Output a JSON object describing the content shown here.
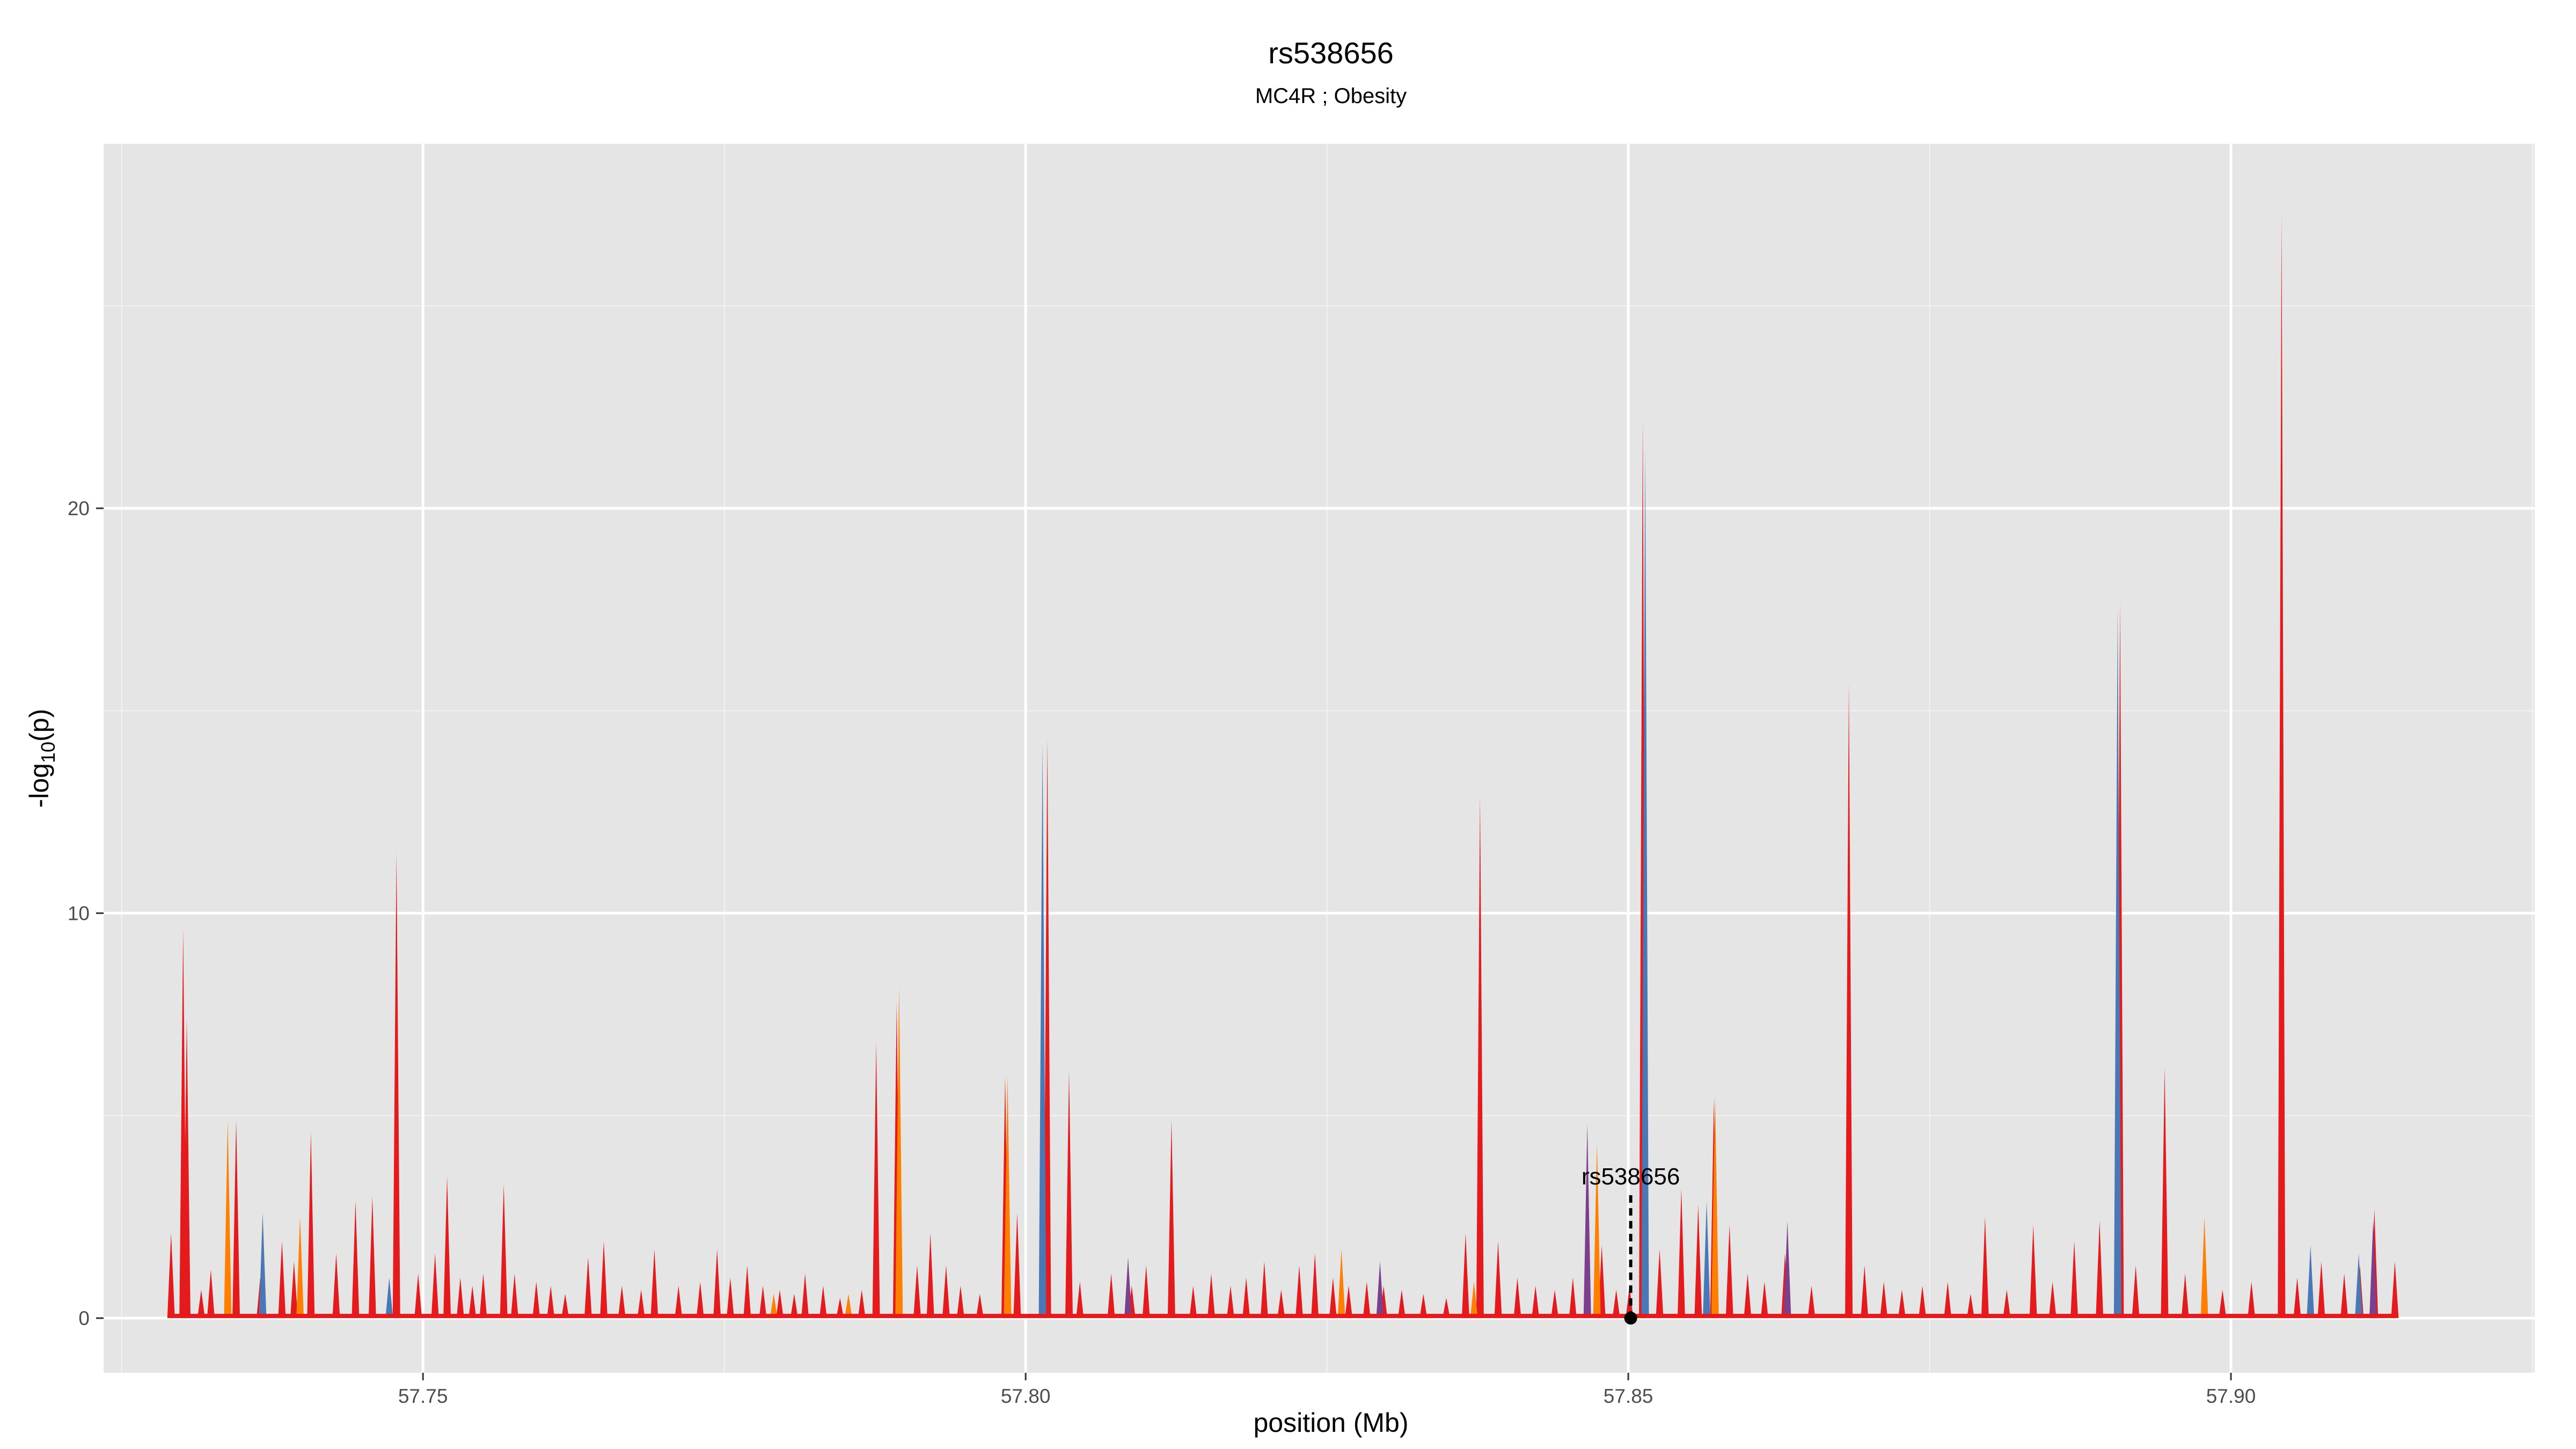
{
  "chart_data": {
    "type": "area",
    "title": "rs538656",
    "subtitle": "MC4R ; Obesity",
    "xlabel": "position (Mb)",
    "ylabel_main": "-log",
    "ylabel_sub": "10",
    "ylabel_tail": "(p)",
    "xlim": [
      57.7235,
      57.9252
    ],
    "ylim": [
      -1.35,
      29.0
    ],
    "x_ticks": [
      {
        "value": 57.75,
        "label": "57.75"
      },
      {
        "value": 57.8,
        "label": "57.80"
      },
      {
        "value": 57.85,
        "label": "57.85"
      },
      {
        "value": 57.9,
        "label": "57.90"
      }
    ],
    "y_ticks": [
      {
        "value": 0,
        "label": "0"
      },
      {
        "value": 10,
        "label": "10"
      },
      {
        "value": 20,
        "label": "20"
      }
    ],
    "grid": true,
    "legend": "none",
    "colors": {
      "panel": "#e5e5e5",
      "grid_major": "#ffffff",
      "grid_minor": "#f2f2f2",
      "red": "#e41a1c",
      "blue": "#4a78b5",
      "orange": "#ff7f00",
      "purple": "#7b3f8c"
    },
    "series": [
      {
        "color": "red",
        "peaks": [
          [
            57.7291,
            2.1
          ],
          [
            57.7301,
            9.6
          ],
          [
            57.7304,
            7.4
          ],
          [
            57.7316,
            0.7
          ],
          [
            57.7324,
            1.2
          ],
          [
            57.7345,
            4.9
          ],
          [
            57.7365,
            1.0
          ],
          [
            57.7383,
            1.9
          ],
          [
            57.7393,
            1.4
          ],
          [
            57.7407,
            4.6
          ],
          [
            57.7428,
            1.6
          ],
          [
            57.7444,
            2.9
          ],
          [
            57.7458,
            3.0
          ],
          [
            57.7478,
            11.5
          ],
          [
            57.7496,
            1.1
          ],
          [
            57.751,
            1.6
          ],
          [
            57.752,
            3.5
          ],
          [
            57.7531,
            1.0
          ],
          [
            57.7541,
            0.8
          ],
          [
            57.755,
            1.1
          ],
          [
            57.7567,
            3.3
          ],
          [
            57.7576,
            1.1
          ],
          [
            57.7594,
            0.9
          ],
          [
            57.7606,
            0.8
          ],
          [
            57.7618,
            0.6
          ],
          [
            57.7637,
            1.5
          ],
          [
            57.765,
            1.9
          ],
          [
            57.7665,
            0.8
          ],
          [
            57.7681,
            0.7
          ],
          [
            57.7692,
            1.7
          ],
          [
            57.7712,
            0.8
          ],
          [
            57.773,
            0.9
          ],
          [
            57.7744,
            1.7
          ],
          [
            57.7755,
            1.0
          ],
          [
            57.7769,
            1.3
          ],
          [
            57.7782,
            0.8
          ],
          [
            57.7796,
            0.7
          ],
          [
            57.7808,
            0.6
          ],
          [
            57.7817,
            1.1
          ],
          [
            57.7832,
            0.8
          ],
          [
            57.7846,
            0.5
          ],
          [
            57.7864,
            0.7
          ],
          [
            57.7876,
            6.8
          ],
          [
            57.7893,
            7.8
          ],
          [
            57.791,
            1.3
          ],
          [
            57.7921,
            2.1
          ],
          [
            57.7934,
            1.3
          ],
          [
            57.7946,
            0.8
          ],
          [
            57.7962,
            0.6
          ],
          [
            57.7983,
            6.0
          ],
          [
            57.7993,
            2.6
          ],
          [
            57.8018,
            14.3
          ],
          [
            57.8036,
            6.1
          ],
          [
            57.8045,
            0.9
          ],
          [
            57.8071,
            1.1
          ],
          [
            57.8088,
            0.8
          ],
          [
            57.81,
            1.3
          ],
          [
            57.8121,
            4.9
          ],
          [
            57.8139,
            0.8
          ],
          [
            57.8154,
            1.1
          ],
          [
            57.817,
            0.8
          ],
          [
            57.8183,
            1.0
          ],
          [
            57.8198,
            1.4
          ],
          [
            57.8212,
            0.7
          ],
          [
            57.8227,
            1.3
          ],
          [
            57.824,
            1.6
          ],
          [
            57.8255,
            1.0
          ],
          [
            57.8268,
            0.8
          ],
          [
            57.8283,
            0.9
          ],
          [
            57.8297,
            0.8
          ],
          [
            57.8312,
            0.7
          ],
          [
            57.833,
            0.6
          ],
          [
            57.8349,
            0.5
          ],
          [
            57.8365,
            2.1
          ],
          [
            57.8377,
            12.9
          ],
          [
            57.8392,
            1.9
          ],
          [
            57.8408,
            1.0
          ],
          [
            57.8423,
            0.8
          ],
          [
            57.8439,
            0.7
          ],
          [
            57.8454,
            1.0
          ],
          [
            57.8478,
            1.8
          ],
          [
            57.849,
            0.7
          ],
          [
            57.8501,
            0.8
          ],
          [
            57.8512,
            22.2
          ],
          [
            57.8526,
            1.7
          ],
          [
            57.8544,
            3.2
          ],
          [
            57.8558,
            2.8
          ],
          [
            57.8571,
            5.4
          ],
          [
            57.8584,
            2.3
          ],
          [
            57.8599,
            1.1
          ],
          [
            57.8613,
            0.9
          ],
          [
            57.863,
            1.6
          ],
          [
            57.8652,
            0.8
          ],
          [
            57.8683,
            15.7
          ],
          [
            57.8696,
            1.3
          ],
          [
            57.8712,
            0.9
          ],
          [
            57.8727,
            0.7
          ],
          [
            57.8744,
            0.8
          ],
          [
            57.8765,
            0.9
          ],
          [
            57.8784,
            0.6
          ],
          [
            57.8796,
            2.5
          ],
          [
            57.8814,
            0.7
          ],
          [
            57.8836,
            2.3
          ],
          [
            57.8852,
            0.9
          ],
          [
            57.887,
            1.9
          ],
          [
            57.8891,
            2.4
          ],
          [
            57.8908,
            17.7
          ],
          [
            57.8921,
            1.3
          ],
          [
            57.8945,
            6.2
          ],
          [
            57.8962,
            1.1
          ],
          [
            57.8978,
            0.6
          ],
          [
            57.8993,
            0.7
          ],
          [
            57.9017,
            0.9
          ],
          [
            57.9042,
            27.3
          ],
          [
            57.9055,
            1.0
          ],
          [
            57.9075,
            1.4
          ],
          [
            57.9094,
            1.1
          ],
          [
            57.9107,
            1.3
          ],
          [
            57.9119,
            2.7
          ],
          [
            57.9136,
            1.4
          ]
        ]
      },
      {
        "color": "orange",
        "peaks": [
          [
            57.7338,
            4.9
          ],
          [
            57.7398,
            2.5
          ],
          [
            57.7791,
            0.6
          ],
          [
            57.7853,
            0.6
          ],
          [
            57.7895,
            8.2
          ],
          [
            57.7985,
            6.0
          ],
          [
            57.8262,
            1.7
          ],
          [
            57.8372,
            0.9
          ],
          [
            57.8474,
            4.3
          ],
          [
            57.8572,
            5.5
          ],
          [
            57.8978,
            2.5
          ]
        ]
      },
      {
        "color": "blue",
        "peaks": [
          [
            57.7367,
            2.6
          ],
          [
            57.7472,
            1.0
          ],
          [
            57.8014,
            14.2
          ],
          [
            57.8514,
            21.5
          ],
          [
            57.8565,
            2.9
          ],
          [
            57.8906,
            17.6
          ],
          [
            57.9066,
            1.8
          ],
          [
            57.9106,
            1.6
          ]
        ]
      },
      {
        "color": "purple",
        "peaks": [
          [
            57.8085,
            1.5
          ],
          [
            57.8294,
            1.4
          ],
          [
            57.8466,
            4.8
          ],
          [
            57.8632,
            2.4
          ],
          [
            57.9118,
            2.4
          ]
        ]
      }
    ],
    "annotation": {
      "label": "rs538656",
      "x": 57.8502,
      "y": 0,
      "label_y": 3.3
    }
  }
}
